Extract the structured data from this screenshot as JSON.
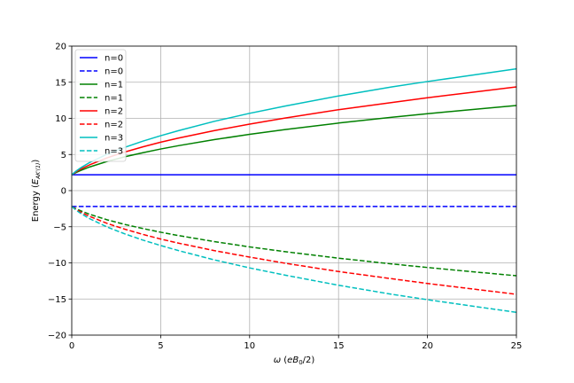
{
  "chart_data": {
    "type": "line",
    "xlabel": "ω (eB₀/2)",
    "ylabel": "Energy (E_AK'(1))",
    "xlim": [
      0,
      25
    ],
    "ylim": [
      -20,
      20
    ],
    "xticks": [
      "0",
      "5",
      "10",
      "15",
      "20",
      "25"
    ],
    "yticks": [
      "−20",
      "−15",
      "−10",
      "−5",
      "0",
      "5",
      "10",
      "15",
      "20"
    ],
    "grid": true,
    "legend_position": "top-left",
    "x": [
      0,
      0.25,
      0.5,
      1,
      2,
      3,
      4,
      5,
      6,
      8,
      10,
      12,
      15,
      18,
      20,
      22,
      25
    ],
    "series": [
      {
        "name": "n=0",
        "color": "#0000ff",
        "dash": "solid",
        "values": [
          2.2,
          2.2,
          2.2,
          2.2,
          2.2,
          2.2,
          2.2,
          2.2,
          2.2,
          2.2,
          2.2,
          2.2,
          2.2,
          2.2,
          2.2,
          2.2,
          2.2
        ]
      },
      {
        "name": "n=0",
        "color": "#0000ff",
        "dash": "dashed",
        "values": [
          -2.2,
          -2.2,
          -2.2,
          -2.2,
          -2.2,
          -2.2,
          -2.2,
          -2.2,
          -2.2,
          -2.2,
          -2.2,
          -2.2,
          -2.2,
          -2.2,
          -2.2,
          -2.2,
          -2.2
        ]
      },
      {
        "name": "n=1",
        "color": "#008000",
        "dash": "solid",
        "values": [
          2.2,
          2.51,
          2.79,
          3.27,
          4.05,
          4.69,
          5.25,
          5.76,
          6.22,
          7.05,
          7.79,
          8.45,
          9.35,
          10.15,
          10.64,
          11.11,
          11.78
        ]
      },
      {
        "name": "n=1",
        "color": "#008000",
        "dash": "dashed",
        "values": [
          -2.2,
          -2.51,
          -2.79,
          -3.27,
          -4.05,
          -4.69,
          -5.25,
          -5.76,
          -6.22,
          -7.05,
          -7.79,
          -8.45,
          -9.35,
          -10.15,
          -10.64,
          -11.11,
          -11.78
        ]
      },
      {
        "name": "n=2",
        "color": "#ff0000",
        "dash": "solid",
        "values": [
          2.2,
          2.62,
          2.97,
          3.56,
          4.55,
          5.35,
          6.06,
          6.7,
          7.27,
          8.3,
          9.2,
          10.05,
          11.2,
          12.2,
          12.85,
          13.45,
          14.35
        ]
      },
      {
        "name": "n=2",
        "color": "#ff0000",
        "dash": "dashed",
        "values": [
          -2.2,
          -2.62,
          -2.97,
          -3.56,
          -4.55,
          -5.35,
          -6.06,
          -6.7,
          -7.27,
          -8.3,
          -9.2,
          -10.05,
          -11.2,
          -12.2,
          -12.85,
          -13.45,
          -14.35
        ]
      },
      {
        "name": "n=3",
        "color": "#00bfbf",
        "dash": "solid",
        "values": [
          2.2,
          2.72,
          3.15,
          3.88,
          5.05,
          6.0,
          6.85,
          7.6,
          8.3,
          9.58,
          10.7,
          11.7,
          13.1,
          14.35,
          15.1,
          15.8,
          16.85
        ]
      },
      {
        "name": "n=3",
        "color": "#00bfbf",
        "dash": "dashed",
        "values": [
          -2.2,
          -2.72,
          -3.15,
          -3.88,
          -5.05,
          -6.0,
          -6.85,
          -7.6,
          -8.3,
          -9.58,
          -10.7,
          -11.7,
          -13.1,
          -14.35,
          -15.1,
          -15.8,
          -16.85
        ]
      }
    ]
  }
}
